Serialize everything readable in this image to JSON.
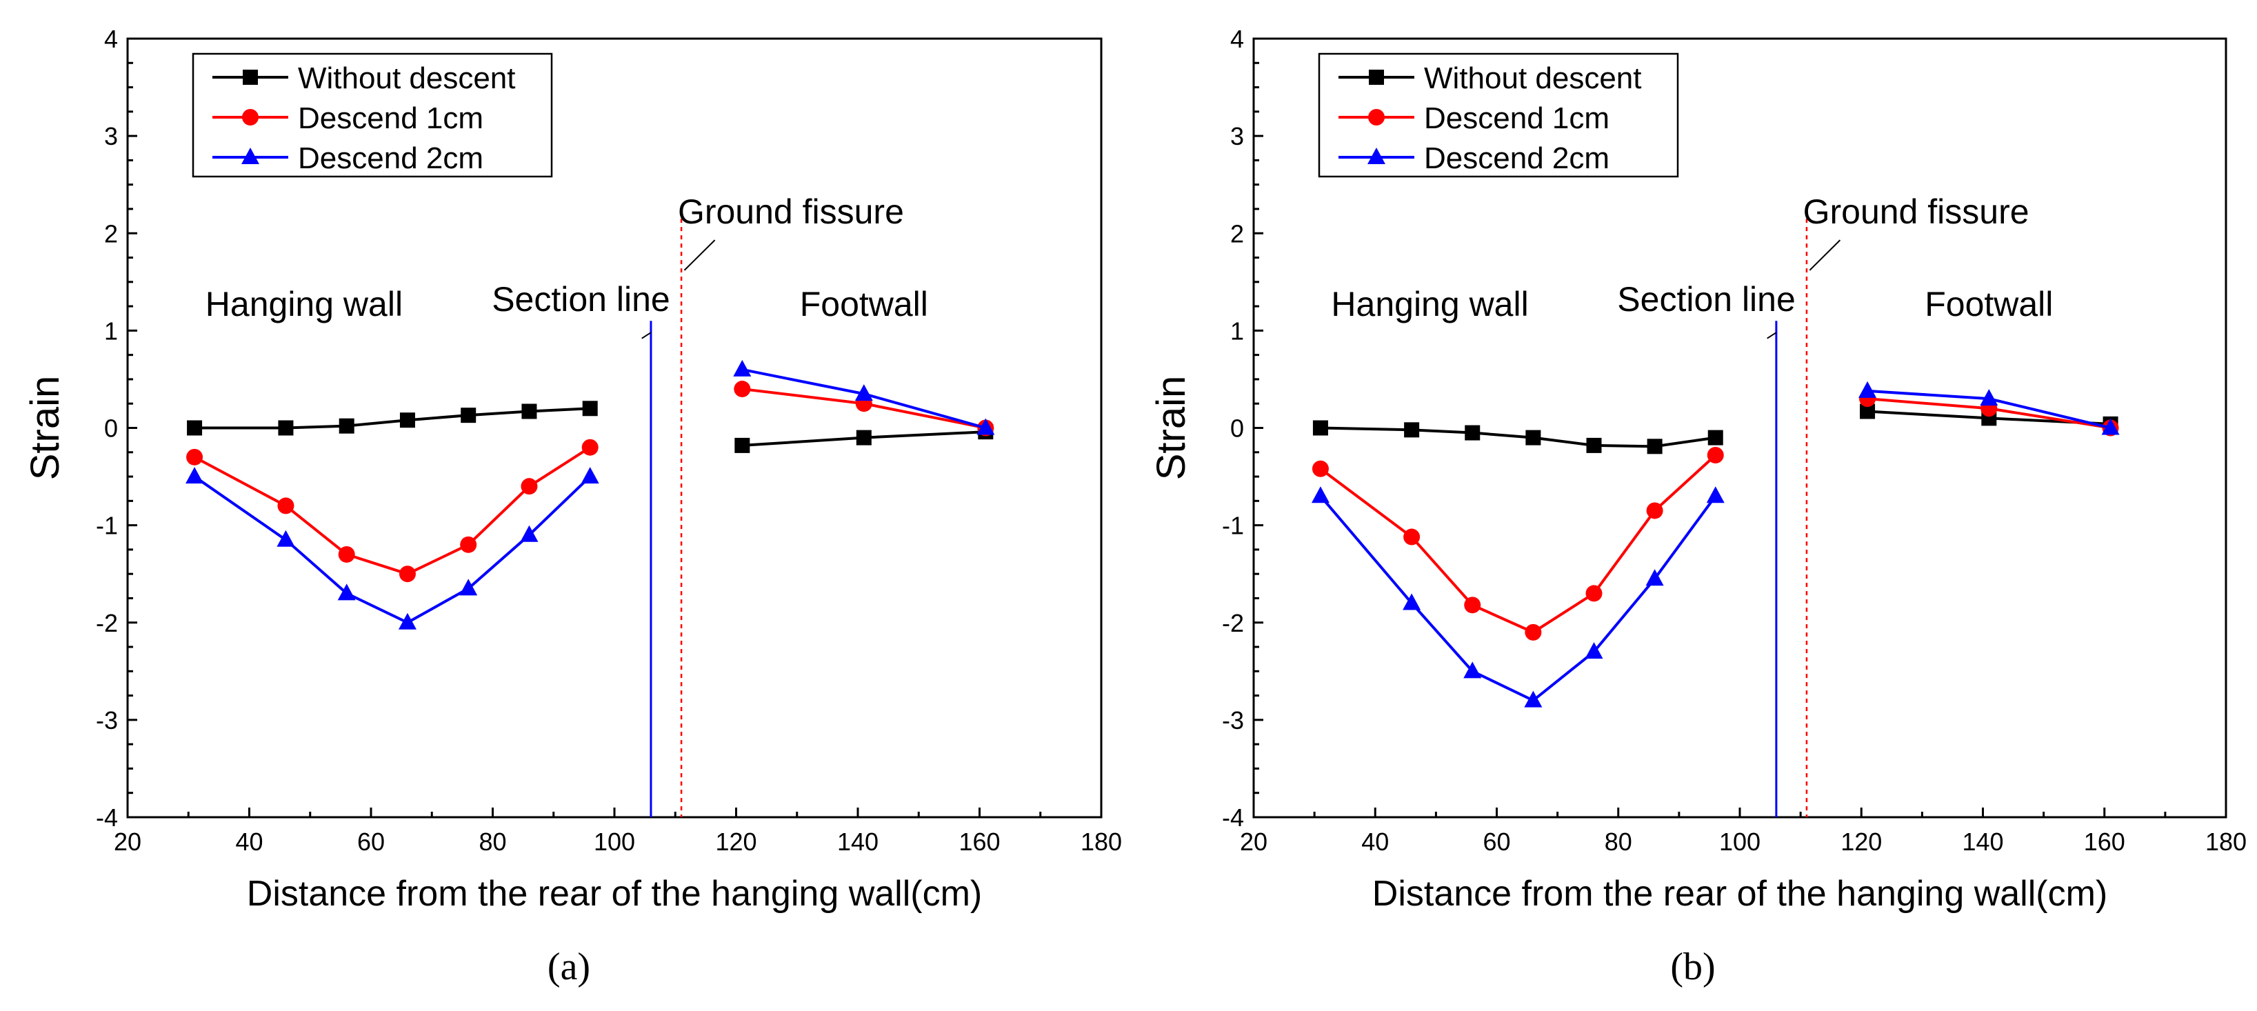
{
  "figure": {
    "panels": [
      "a",
      "b"
    ]
  },
  "chart_data": [
    {
      "type": "line",
      "panel_label": "a",
      "caption": "(a)",
      "xlabel": "Distance from the rear of the hanging wall(cm)",
      "ylabel": "Strain",
      "xlim": [
        20,
        180
      ],
      "ylim": [
        -4,
        4
      ],
      "xticks": [
        20,
        40,
        60,
        80,
        100,
        120,
        140,
        160,
        180
      ],
      "yticks": [
        -4,
        -3,
        -2,
        -1,
        0,
        1,
        2,
        3,
        4
      ],
      "legend_position": "top-left",
      "annotations": {
        "hanging_wall": "Hanging wall",
        "footwall": "Footwall",
        "section_line": "Section line",
        "ground_fissure": "Ground fissure",
        "section_line_x": 106,
        "ground_fissure_x": 111
      },
      "series": [
        {
          "name": "Without descent",
          "color": "#000000",
          "marker": "square",
          "segments": [
            {
              "x": [
                31,
                46,
                56,
                66,
                76,
                86,
                96
              ],
              "y": [
                0.0,
                0.0,
                0.02,
                0.08,
                0.13,
                0.17,
                0.2
              ]
            },
            {
              "x": [
                121,
                141,
                161
              ],
              "y": [
                -0.18,
                -0.1,
                -0.04
              ]
            }
          ]
        },
        {
          "name": "Descend 1cm",
          "color": "#ff0000",
          "marker": "circle",
          "segments": [
            {
              "x": [
                31,
                46,
                56,
                66,
                76,
                86,
                96
              ],
              "y": [
                -0.3,
                -0.8,
                -1.3,
                -1.5,
                -1.2,
                -0.6,
                -0.2
              ]
            },
            {
              "x": [
                121,
                141,
                161
              ],
              "y": [
                0.4,
                0.25,
                0.0
              ]
            }
          ]
        },
        {
          "name": "Descend 2cm",
          "color": "#0000ff",
          "marker": "triangle",
          "segments": [
            {
              "x": [
                31,
                46,
                56,
                66,
                76,
                86,
                96
              ],
              "y": [
                -0.5,
                -1.15,
                -1.7,
                -2.0,
                -1.65,
                -1.1,
                -0.5
              ]
            },
            {
              "x": [
                121,
                141,
                161
              ],
              "y": [
                0.6,
                0.35,
                0.0
              ]
            }
          ]
        }
      ]
    },
    {
      "type": "line",
      "panel_label": "b",
      "caption": "(b)",
      "xlabel": "Distance from the rear of the hanging wall(cm)",
      "ylabel": "Strain",
      "xlim": [
        20,
        180
      ],
      "ylim": [
        -4,
        4
      ],
      "xticks": [
        20,
        40,
        60,
        80,
        100,
        120,
        140,
        160,
        180
      ],
      "yticks": [
        -4,
        -3,
        -2,
        -1,
        0,
        1,
        2,
        3,
        4
      ],
      "legend_position": "top-left",
      "annotations": {
        "hanging_wall": "Hanging wall",
        "footwall": "Footwall",
        "section_line": "Section line",
        "ground_fissure": "Ground fissure",
        "section_line_x": 106,
        "ground_fissure_x": 111
      },
      "series": [
        {
          "name": "Without descent",
          "color": "#000000",
          "marker": "square",
          "segments": [
            {
              "x": [
                31,
                46,
                56,
                66,
                76,
                86,
                96
              ],
              "y": [
                0.0,
                -0.02,
                -0.05,
                -0.1,
                -0.18,
                -0.19,
                -0.1
              ]
            },
            {
              "x": [
                121,
                141,
                161
              ],
              "y": [
                0.17,
                0.1,
                0.04
              ]
            }
          ]
        },
        {
          "name": "Descend 1cm",
          "color": "#ff0000",
          "marker": "circle",
          "segments": [
            {
              "x": [
                31,
                46,
                56,
                66,
                76,
                86,
                96
              ],
              "y": [
                -0.42,
                -1.12,
                -1.82,
                -2.1,
                -1.7,
                -0.85,
                -0.28
              ]
            },
            {
              "x": [
                121,
                141,
                161
              ],
              "y": [
                0.3,
                0.2,
                0.0
              ]
            }
          ]
        },
        {
          "name": "Descend 2cm",
          "color": "#0000ff",
          "marker": "triangle",
          "segments": [
            {
              "x": [
                31,
                46,
                56,
                66,
                76,
                86,
                96
              ],
              "y": [
                -0.7,
                -1.8,
                -2.5,
                -2.8,
                -2.3,
                -1.55,
                -0.7
              ]
            },
            {
              "x": [
                121,
                141,
                161
              ],
              "y": [
                0.38,
                0.3,
                0.0
              ]
            }
          ]
        }
      ]
    }
  ]
}
